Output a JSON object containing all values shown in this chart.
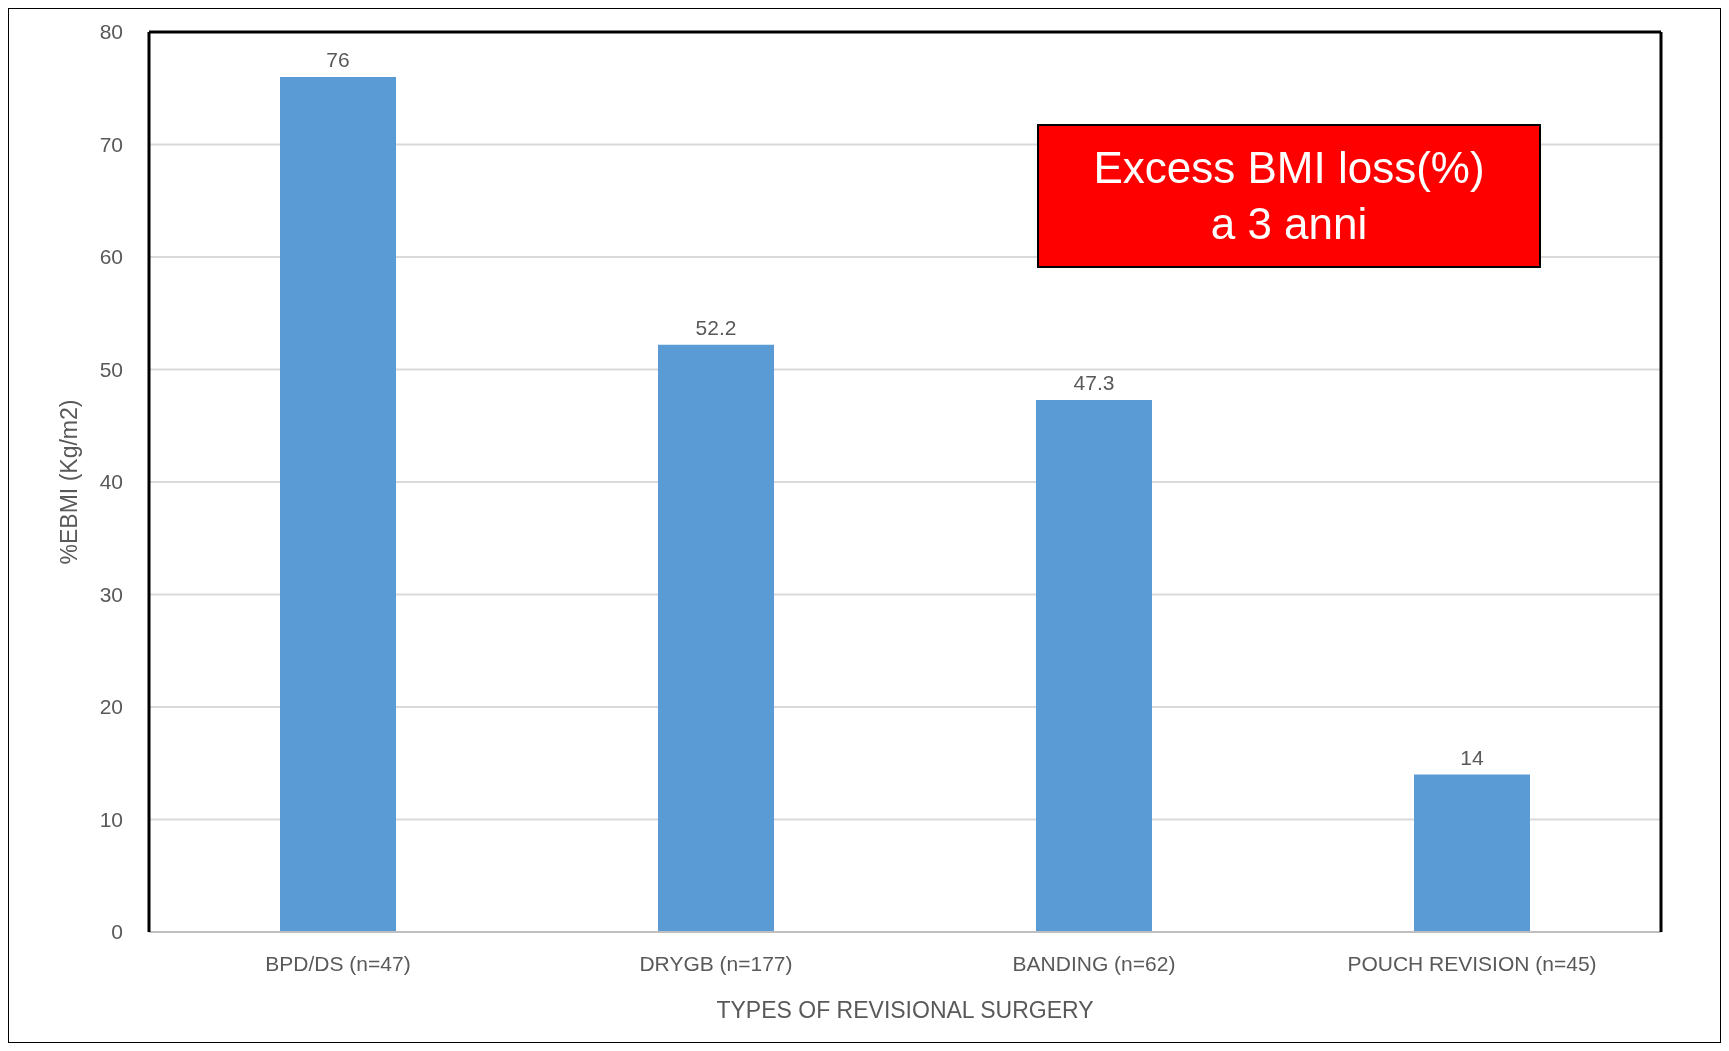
{
  "chart_data": {
    "type": "bar",
    "xlabel": "TYPES OF REVISIONAL SURGERY",
    "ylabel": "%EBMI (Kg/m2)",
    "categories": [
      "BPD/DS (n=47)",
      "DRYGB (n=177)",
      "BANDING (n=62)",
      "POUCH REVISION (n=45)"
    ],
    "values": [
      76,
      52.2,
      47.3,
      14
    ],
    "color": "#5b9bd5",
    "data_labels": true,
    "ylim": [
      0,
      80
    ],
    "yticks": [
      0,
      10,
      20,
      30,
      40,
      50,
      60,
      70,
      80
    ],
    "grid": "y",
    "annotations": [
      "Excess BMI loss(%)\na 3 anni"
    ]
  }
}
